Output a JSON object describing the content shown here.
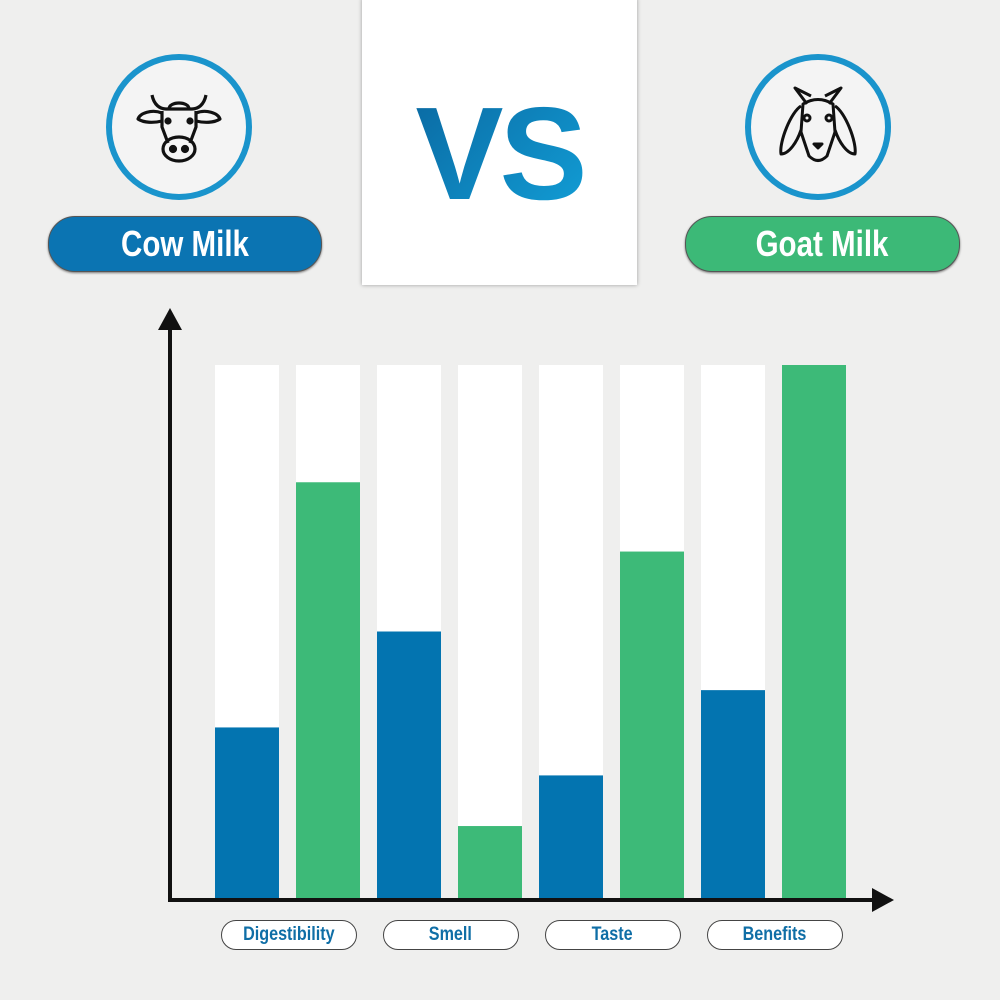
{
  "header": {
    "left": {
      "label": "Cow Milk",
      "icon": "cow-icon",
      "color": "#0374b0"
    },
    "vs": "VS",
    "right": {
      "label": "Goat Milk",
      "icon": "goat-icon",
      "color": "#3dba78"
    }
  },
  "chart_data": {
    "type": "bar",
    "title": "",
    "xlabel": "",
    "ylabel": "",
    "ylim": [
      0,
      1
    ],
    "grid": false,
    "categories": [
      "Digestibility",
      "Smell",
      "Taste",
      "Benefits"
    ],
    "series": [
      {
        "name": "Cow Milk",
        "color": "#0374b0",
        "values": [
          0.32,
          0.5,
          0.23,
          0.39
        ]
      },
      {
        "name": "Goat Milk",
        "color": "#3dba78",
        "values": [
          0.78,
          0.135,
          0.65,
          1.0
        ]
      }
    ]
  }
}
